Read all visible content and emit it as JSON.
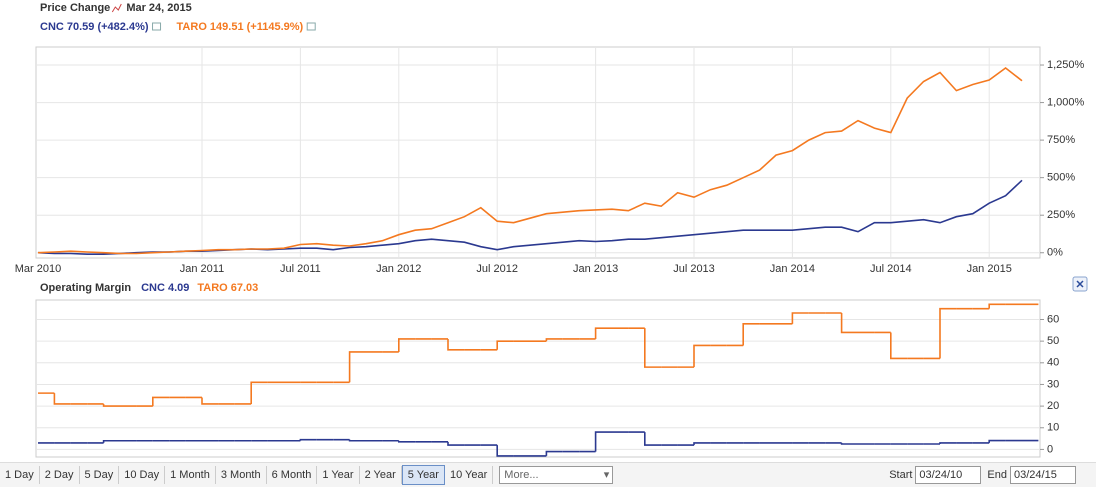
{
  "chart_data": [
    {
      "type": "line",
      "title": "Price Change",
      "subtitle": "Mar 24, 2015",
      "categories": [
        "Mar 2010",
        null,
        null,
        null,
        null,
        null,
        null,
        null,
        null,
        null,
        "Jan 2011",
        null,
        null,
        null,
        null,
        null,
        "Jul 2011",
        null,
        null,
        null,
        null,
        null,
        "Jan 2012",
        null,
        null,
        null,
        null,
        null,
        "Jul 2012",
        null,
        null,
        null,
        null,
        null,
        "Jan 2013",
        null,
        null,
        null,
        null,
        null,
        "Jul 2013",
        null,
        null,
        null,
        null,
        null,
        "Jan 2014",
        null,
        null,
        null,
        null,
        null,
        "Jul 2014",
        null,
        null,
        null,
        null,
        null,
        "Jan 2015",
        null,
        null
      ],
      "series": [
        {
          "name": "CNC 70.59 (+482.4%)",
          "color": "#2b3990",
          "values": [
            0,
            -5,
            -5,
            -10,
            -10,
            -5,
            0,
            5,
            5,
            10,
            10,
            15,
            20,
            25,
            20,
            25,
            30,
            30,
            20,
            35,
            40,
            50,
            60,
            80,
            90,
            80,
            70,
            40,
            20,
            40,
            50,
            60,
            70,
            80,
            75,
            80,
            90,
            90,
            100,
            110,
            120,
            130,
            140,
            150,
            150,
            150,
            150,
            160,
            170,
            170,
            140,
            200,
            200,
            210,
            220,
            200,
            240,
            260,
            330,
            380,
            482.4
          ]
        },
        {
          "name": "TARO 149.51 (+1145.9%)",
          "color": "#f47920",
          "values": [
            0,
            5,
            10,
            5,
            0,
            -5,
            -5,
            0,
            5,
            10,
            15,
            20,
            20,
            25,
            25,
            30,
            55,
            60,
            50,
            45,
            60,
            80,
            120,
            150,
            160,
            200,
            240,
            300,
            210,
            200,
            230,
            260,
            270,
            280,
            285,
            290,
            280,
            330,
            310,
            400,
            370,
            420,
            450,
            500,
            550,
            650,
            680,
            750,
            800,
            810,
            880,
            830,
            800,
            1030,
            1140,
            1200,
            1080,
            1120,
            1150,
            1230,
            1145.9
          ]
        }
      ],
      "ylim": [
        -35,
        1370
      ],
      "yticks": [
        {
          "value": 0,
          "label": "0%"
        },
        {
          "value": 250,
          "label": "250%"
        },
        {
          "value": 500,
          "label": "500%"
        },
        {
          "value": 750,
          "label": "750%"
        },
        {
          "value": 1000,
          "label": "1,000%"
        },
        {
          "value": 1250,
          "label": "1,250%"
        }
      ],
      "grid": true
    },
    {
      "type": "step",
      "title": "Operating Margin",
      "series": [
        {
          "name": "CNC 4.09",
          "color": "#2b3990",
          "values": [
            3,
            3,
            3,
            3,
            4,
            4,
            4,
            4,
            4,
            4,
            4,
            4,
            4,
            4,
            4,
            4,
            4.5,
            4.5,
            4.5,
            4,
            4,
            4,
            3.5,
            3.5,
            3.5,
            2,
            2,
            2,
            -3,
            -3,
            -3,
            -1,
            -1,
            -1,
            8,
            8,
            8,
            2,
            2,
            2,
            3,
            3,
            3,
            3,
            3,
            3,
            3,
            3,
            3,
            2.5,
            2.5,
            2.5,
            2.5,
            2.5,
            2.5,
            3,
            3,
            3,
            4.09,
            4.09,
            4.09
          ]
        },
        {
          "name": "TARO 67.03",
          "color": "#f47920",
          "values": [
            26,
            21,
            21,
            21,
            20,
            20,
            20,
            24,
            24,
            24,
            21,
            21,
            21,
            31,
            31,
            31,
            31,
            31,
            31,
            45,
            45,
            45,
            51,
            51,
            51,
            46,
            46,
            46,
            50,
            50,
            50,
            51,
            51,
            51,
            56,
            56,
            56,
            38,
            38,
            38,
            48,
            48,
            48,
            58,
            58,
            58,
            63,
            63,
            63,
            54,
            54,
            54,
            42,
            42,
            42,
            65,
            65,
            65,
            67.03,
            67.03,
            67.03
          ]
        }
      ],
      "ylim": [
        -3.5,
        69
      ],
      "yticks": [
        0,
        10,
        20,
        30,
        40,
        50,
        60
      ],
      "grid": true
    }
  ],
  "toolbar": {
    "ranges": [
      "1 Day",
      "2 Day",
      "5 Day",
      "10 Day",
      "1 Month",
      "3 Month",
      "6 Month",
      "1 Year",
      "2 Year",
      "5 Year",
      "10 Year"
    ],
    "selected": "5 Year",
    "more": "More...",
    "start_label": "Start",
    "start": "03/24/10",
    "end_label": "End",
    "end": "03/24/15"
  }
}
